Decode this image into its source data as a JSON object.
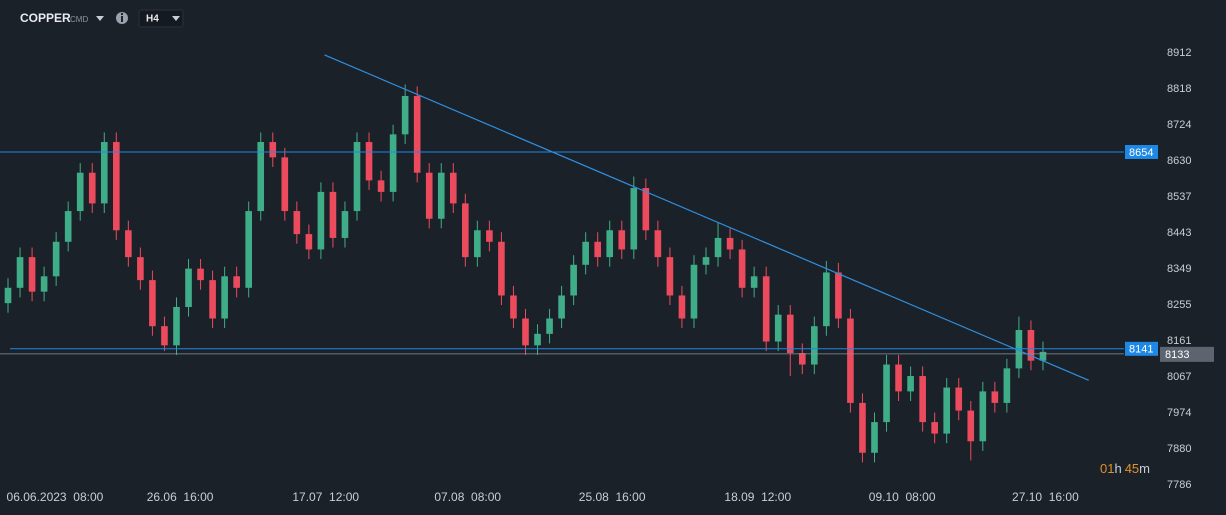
{
  "header": {
    "symbol": "COPPER",
    "tag": "CMD",
    "timeframe": "H4"
  },
  "timer": {
    "hours": "01",
    "hours_unit": "h",
    "minutes": "45",
    "minutes_unit": "m"
  },
  "chart_data": {
    "type": "candlestick",
    "up_color": "#3fae88",
    "down_color": "#ec4a5d",
    "xlim": [
      -0.665,
      92.4
    ],
    "ylim": [
      7786,
      8972
    ],
    "yticks": [
      7786,
      7880,
      7974,
      8067,
      8161,
      8255,
      8349,
      8443,
      8537,
      8630,
      8724,
      8818,
      8912
    ],
    "xticks": [
      {
        "value": 3.9,
        "label": "06.06.2023  08:00"
      },
      {
        "value": 14.3,
        "label": "26.06  16:00"
      },
      {
        "value": 26.4,
        "label": "17.07  12:00"
      },
      {
        "value": 38.2,
        "label": "07.08  08:00"
      },
      {
        "value": 50.2,
        "label": "25.08  16:00"
      },
      {
        "value": 62.3,
        "label": "18.09  12:00"
      },
      {
        "value": 74.3,
        "label": "09.10  08:00"
      },
      {
        "value": 86.2,
        "label": "27.10  16:00"
      }
    ],
    "open": [
      8260,
      8300,
      8380,
      8290,
      8330,
      8420,
      8500,
      8600,
      8520,
      8680,
      8450,
      8380,
      8320,
      8200,
      8150,
      8250,
      8350,
      8320,
      8220,
      8330,
      8300,
      8500,
      8680,
      8640,
      8500,
      8440,
      8400,
      8550,
      8430,
      8500,
      8680,
      8580,
      8550,
      8700,
      8800,
      8600,
      8480,
      8600,
      8520,
      8380,
      8450,
      8420,
      8280,
      8220,
      8150,
      8180,
      8220,
      8280,
      8360,
      8420,
      8380,
      8450,
      8400,
      8560,
      8450,
      8380,
      8280,
      8220,
      8360,
      8380,
      8430,
      8400,
      8300,
      8330,
      8160,
      8230,
      8130,
      8100,
      8200,
      8340,
      8220,
      8000,
      7870,
      7950,
      8100,
      8030,
      8070,
      7950,
      7920,
      8040,
      7980,
      7900,
      8030,
      8000,
      8090,
      8190,
      8110
    ],
    "high": [
      8325,
      8405,
      8405,
      8355,
      8445,
      8525,
      8625,
      8625,
      8705,
      8705,
      8475,
      8405,
      8345,
      8225,
      8275,
      8375,
      8375,
      8345,
      8355,
      8355,
      8525,
      8705,
      8705,
      8665,
      8525,
      8465,
      8575,
      8575,
      8525,
      8705,
      8705,
      8605,
      8725,
      8830,
      8825,
      8625,
      8625,
      8625,
      8545,
      8475,
      8475,
      8445,
      8305,
      8245,
      8205,
      8245,
      8305,
      8385,
      8445,
      8445,
      8475,
      8475,
      8590,
      8585,
      8475,
      8405,
      8305,
      8385,
      8405,
      8470,
      8455,
      8425,
      8355,
      8355,
      8255,
      8255,
      8155,
      8225,
      8370,
      8365,
      8245,
      8025,
      7975,
      8125,
      8125,
      8095,
      8095,
      7975,
      8065,
      8065,
      8005,
      8055,
      8055,
      8115,
      8225,
      8215,
      8160
    ],
    "low": [
      8235,
      8275,
      8265,
      8265,
      8305,
      8395,
      8475,
      8495,
      8495,
      8425,
      8355,
      8295,
      8175,
      8135,
      8125,
      8225,
      8295,
      8195,
      8195,
      8275,
      8275,
      8475,
      8615,
      8475,
      8415,
      8375,
      8375,
      8405,
      8405,
      8475,
      8555,
      8525,
      8525,
      8675,
      8575,
      8455,
      8455,
      8495,
      8355,
      8355,
      8395,
      8255,
      8195,
      8125,
      8125,
      8155,
      8195,
      8255,
      8335,
      8355,
      8355,
      8375,
      8375,
      8425,
      8355,
      8255,
      8195,
      8195,
      8335,
      8355,
      8375,
      8275,
      8275,
      8135,
      8135,
      8070,
      8075,
      8075,
      8175,
      8195,
      7975,
      7845,
      7845,
      7925,
      8005,
      8005,
      7925,
      7895,
      7895,
      7955,
      7850,
      7875,
      7975,
      7975,
      8065,
      8085,
      8085
    ],
    "close": [
      8300,
      8380,
      8290,
      8330,
      8420,
      8500,
      8600,
      8520,
      8680,
      8450,
      8380,
      8320,
      8200,
      8150,
      8250,
      8350,
      8320,
      8220,
      8330,
      8300,
      8500,
      8680,
      8640,
      8500,
      8440,
      8400,
      8550,
      8430,
      8500,
      8680,
      8580,
      8550,
      8700,
      8800,
      8600,
      8480,
      8600,
      8520,
      8380,
      8450,
      8420,
      8280,
      8220,
      8150,
      8180,
      8220,
      8280,
      8360,
      8420,
      8380,
      8450,
      8400,
      8560,
      8450,
      8380,
      8280,
      8220,
      8360,
      8380,
      8430,
      8400,
      8300,
      8330,
      8160,
      8230,
      8130,
      8100,
      8200,
      8340,
      8220,
      8000,
      7870,
      7950,
      8100,
      8030,
      8070,
      7950,
      7920,
      8040,
      7980,
      7900,
      8030,
      8000,
      8090,
      8190,
      8110,
      8133
    ],
    "levels": [
      {
        "value": 8654,
        "color": "#1e88e5"
      },
      {
        "value": 8141,
        "color": "#1e88e5"
      }
    ],
    "current_price": {
      "value": 8133,
      "color": "#5c6470"
    },
    "trendline": {
      "x": [
        26.3,
        89.8
      ],
      "y": [
        8907,
        8059
      ],
      "color": "#2f8fe0"
    }
  }
}
